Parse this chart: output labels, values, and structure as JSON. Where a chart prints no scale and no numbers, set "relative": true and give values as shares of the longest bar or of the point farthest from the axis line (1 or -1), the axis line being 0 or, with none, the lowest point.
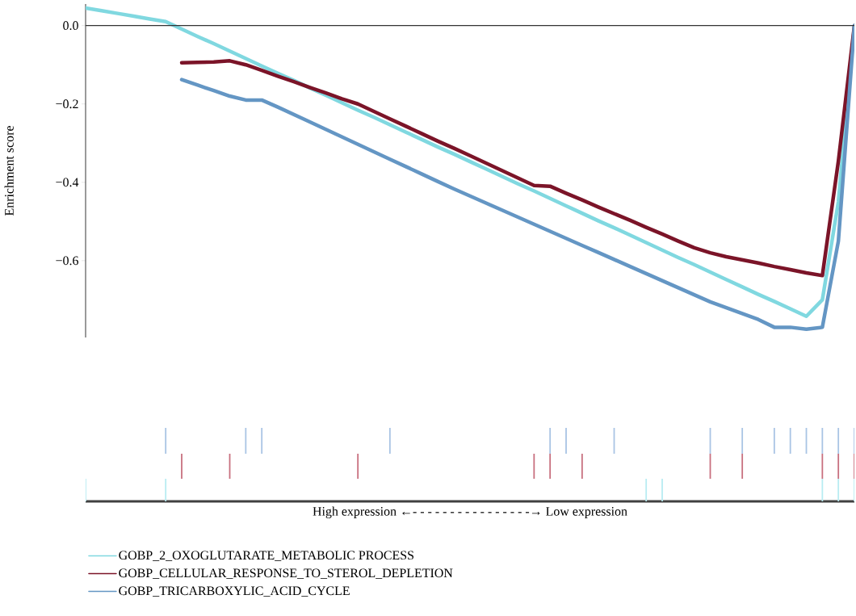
{
  "chart_data": [
    {
      "type": "line",
      "ylabel": "Enrichment score",
      "ylim": [
        -0.796,
        0.055
      ],
      "yticks": [
        {
          "value": 0,
          "label": "0.0"
        },
        {
          "value": -0.2,
          "label": "−0.2"
        },
        {
          "value": -0.4,
          "label": "−0.4"
        },
        {
          "value": -0.6,
          "label": "−0.6"
        }
      ],
      "categories": [
        null,
        null,
        null,
        null,
        null,
        null,
        null,
        null,
        null,
        null,
        null,
        null,
        null,
        null,
        null,
        null,
        null,
        null,
        null,
        null,
        null,
        null,
        null,
        null,
        null,
        null,
        null,
        null,
        null,
        null,
        null,
        null,
        null,
        null,
        null,
        null,
        null,
        null,
        null,
        null,
        null,
        null,
        null,
        null,
        null,
        null,
        null,
        null,
        null
      ],
      "legend": "bottom",
      "ref_lines": [
        {
          "axis": "y",
          "value": 0,
          "color": "#333333"
        }
      ],
      "series": [
        {
          "name": "GOBP_2_OXOGLUTARATE_METABOLIC PROCESS",
          "color": "#80d8e0",
          "values": [
            0.045,
            0.038,
            0.031,
            0.024,
            0.017,
            0.01,
            -0.009,
            -0.028,
            -0.046,
            -0.065,
            -0.084,
            -0.103,
            -0.122,
            -0.14,
            -0.159,
            -0.178,
            -0.197,
            -0.216,
            -0.234,
            -0.253,
            -0.272,
            -0.291,
            -0.31,
            -0.328,
            -0.347,
            -0.366,
            -0.385,
            -0.404,
            -0.422,
            -0.441,
            -0.46,
            -0.479,
            -0.498,
            -0.516,
            -0.535,
            -0.554,
            -0.573,
            -0.592,
            -0.61,
            -0.629,
            -0.648,
            -0.667,
            -0.686,
            -0.704,
            -0.723,
            -0.742,
            -0.7,
            -0.45,
            0.0
          ]
        },
        {
          "name": "GOBP_CELLULAR_RESPONSE_TO_STEROL_DEPLETION",
          "color": "#7b1428",
          "values": [
            null,
            null,
            null,
            null,
            null,
            null,
            -0.095,
            -0.094,
            -0.093,
            -0.09,
            -0.1,
            -0.114,
            -0.129,
            -0.143,
            -0.158,
            -0.172,
            -0.187,
            -0.2,
            -0.219,
            -0.238,
            -0.257,
            -0.276,
            -0.295,
            -0.313,
            -0.332,
            -0.351,
            -0.37,
            -0.389,
            -0.408,
            -0.41,
            -0.428,
            -0.445,
            -0.463,
            -0.48,
            -0.497,
            -0.515,
            -0.532,
            -0.55,
            -0.567,
            -0.58,
            -0.59,
            -0.598,
            -0.606,
            -0.615,
            -0.623,
            -0.631,
            -0.638,
            -0.346,
            0.0
          ]
        },
        {
          "name": "GOBP_TRICARBOXYLIC_ACID_CYCLE",
          "color": "#6496c4",
          "values": [
            null,
            null,
            null,
            null,
            null,
            null,
            -0.138,
            -0.152,
            -0.166,
            -0.18,
            -0.19,
            -0.19,
            -0.208,
            -0.227,
            -0.246,
            -0.265,
            -0.284,
            -0.303,
            -0.322,
            -0.341,
            -0.36,
            -0.379,
            -0.398,
            -0.417,
            -0.435,
            -0.453,
            -0.471,
            -0.489,
            -0.507,
            -0.525,
            -0.543,
            -0.561,
            -0.579,
            -0.597,
            -0.615,
            -0.633,
            -0.651,
            -0.669,
            -0.687,
            -0.705,
            -0.72,
            -0.735,
            -0.75,
            -0.77,
            -0.77,
            -0.775,
            -0.77,
            -0.55,
            0.0
          ]
        }
      ]
    },
    {
      "type": "bar",
      "relative": true,
      "categories": [
        null,
        null,
        null,
        null,
        null,
        null,
        null,
        null,
        null,
        null,
        null,
        null,
        null,
        null,
        null,
        null,
        null,
        null,
        null,
        null,
        null,
        null,
        null,
        null,
        null,
        null,
        null,
        null,
        null,
        null,
        null,
        null,
        null,
        null,
        null,
        null,
        null,
        null,
        null,
        null,
        null,
        null,
        null,
        null,
        null,
        null,
        null,
        null,
        null
      ],
      "series": [
        {
          "color": "#a9c4e4",
          "values": [
            null,
            null,
            null,
            null,
            null,
            1,
            null,
            null,
            null,
            null,
            1,
            1,
            null,
            null,
            null,
            null,
            null,
            null,
            null,
            1,
            null,
            null,
            null,
            null,
            null,
            null,
            null,
            null,
            null,
            1,
            1,
            null,
            null,
            1,
            null,
            null,
            null,
            null,
            null,
            1,
            null,
            1,
            null,
            1,
            1,
            1,
            1,
            1,
            1
          ]
        }
      ]
    },
    {
      "type": "bar",
      "relative": true,
      "categories": [
        null,
        null,
        null,
        null,
        null,
        null,
        null,
        null,
        null,
        null,
        null,
        null,
        null,
        null,
        null,
        null,
        null,
        null,
        null,
        null,
        null,
        null,
        null,
        null,
        null,
        null,
        null,
        null,
        null,
        null,
        null,
        null,
        null,
        null,
        null,
        null,
        null,
        null,
        null,
        null,
        null,
        null,
        null,
        null,
        null,
        null,
        null,
        null,
        null
      ],
      "series": [
        {
          "color": "#c8707f",
          "values": [
            null,
            null,
            null,
            null,
            null,
            null,
            1,
            null,
            null,
            1,
            null,
            null,
            null,
            null,
            null,
            null,
            null,
            1,
            null,
            null,
            null,
            null,
            null,
            null,
            null,
            null,
            null,
            null,
            1,
            1,
            null,
            1,
            null,
            null,
            null,
            null,
            null,
            null,
            null,
            1,
            null,
            1,
            null,
            null,
            null,
            null,
            1,
            1,
            1
          ]
        }
      ]
    },
    {
      "type": "bar",
      "relative": true,
      "xlabel": "High expression ←- - - - - - - - - - - - - - - -→ Low expression",
      "categories": [
        null,
        null,
        null,
        null,
        null,
        null,
        null,
        null,
        null,
        null,
        null,
        null,
        null,
        null,
        null,
        null,
        null,
        null,
        null,
        null,
        null,
        null,
        null,
        null,
        null,
        null,
        null,
        null,
        null,
        null,
        null,
        null,
        null,
        null,
        null,
        null,
        null,
        null,
        null,
        null,
        null,
        null,
        null,
        null,
        null,
        null,
        null,
        null,
        null
      ],
      "series": [
        {
          "color": "#b8ecf2",
          "values": [
            1,
            null,
            null,
            null,
            null,
            1,
            null,
            null,
            null,
            null,
            null,
            null,
            null,
            null,
            null,
            null,
            null,
            null,
            null,
            null,
            null,
            null,
            null,
            null,
            null,
            null,
            null,
            null,
            null,
            null,
            null,
            null,
            null,
            null,
            null,
            1,
            1,
            null,
            null,
            null,
            null,
            null,
            null,
            null,
            null,
            null,
            1,
            1,
            1
          ]
        }
      ]
    }
  ]
}
